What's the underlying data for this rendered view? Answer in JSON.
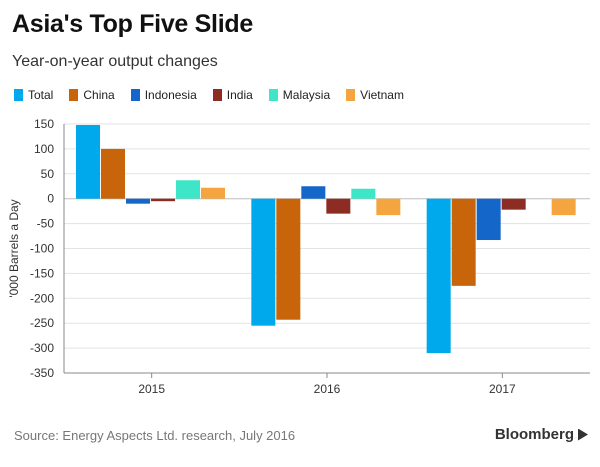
{
  "header": {
    "title": "Asia's Top Five Slide",
    "subtitle": "Year-on-year output changes"
  },
  "footer": {
    "source": "Source: Energy Aspects Ltd. research, July 2016",
    "brand": "Bloomberg"
  },
  "chart_data": {
    "type": "bar",
    "title": "Asia's Top Five Slide",
    "subtitle": "Year-on-year output changes",
    "xlabel": "",
    "ylabel": "'000 Barrels a Day",
    "ylim": [
      -350,
      150
    ],
    "yticks": [
      150,
      100,
      50,
      0,
      -50,
      -100,
      -150,
      -200,
      -250,
      -300,
      -350
    ],
    "grid": true,
    "legend_position": "top",
    "categories": [
      "2015",
      "2016",
      "2017"
    ],
    "series": [
      {
        "name": "Total",
        "color": "#00a8ec",
        "values": [
          148,
          -255,
          -310
        ]
      },
      {
        "name": "China",
        "color": "#c8640a",
        "values": [
          100,
          -243,
          -175
        ]
      },
      {
        "name": "Indonesia",
        "color": "#1466c8",
        "values": [
          -10,
          25,
          -83
        ]
      },
      {
        "name": "India",
        "color": "#8c2c22",
        "values": [
          -5,
          -30,
          -22
        ]
      },
      {
        "name": "Malaysia",
        "color": "#3ee6c8",
        "values": [
          37,
          20,
          0
        ]
      },
      {
        "name": "Vietnam",
        "color": "#f5a540",
        "values": [
          22,
          -33,
          -33
        ]
      }
    ]
  }
}
